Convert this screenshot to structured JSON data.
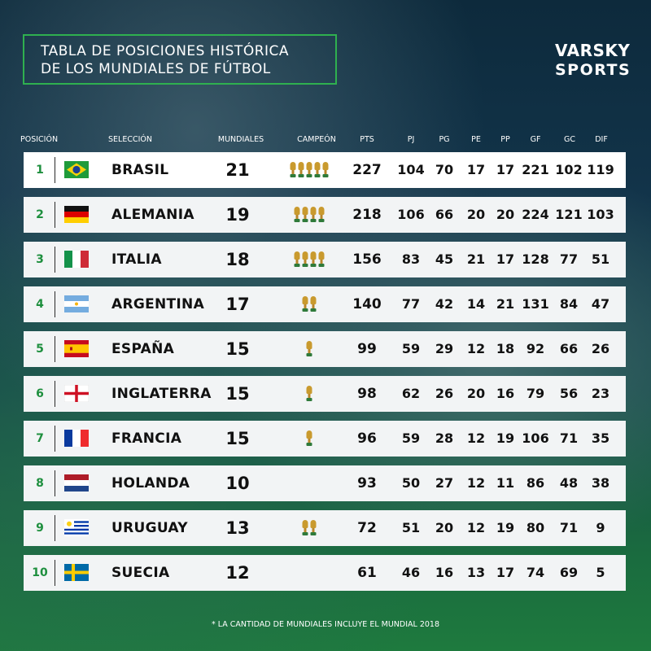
{
  "title": {
    "line1": "TABLA DE POSICIONES HISTÓRICA",
    "line2": "DE LOS MUNDIALES DE FÚTBOL"
  },
  "logo": {
    "line1": "VARSKY",
    "line2": "SPORTS"
  },
  "columns": {
    "posicion": "POSICIÓN",
    "seleccion": "SELECCIÓN",
    "mundiales": "MUNDIALES",
    "campeon": "CAMPEÓN",
    "pts": "PTS",
    "pj": "PJ",
    "pg": "PG",
    "pe": "PE",
    "pp": "PP",
    "gf": "GF",
    "gc": "GC",
    "dif": "DIF"
  },
  "rows": [
    {
      "pos": "1",
      "flag": "brazil-flag",
      "team": "BRASIL",
      "mundiales": "21",
      "titles": 5,
      "pts": "227",
      "pj": "104",
      "pg": "70",
      "pe": "17",
      "pp": "17",
      "gf": "221",
      "gc": "102",
      "dif": "119"
    },
    {
      "pos": "2",
      "flag": "germany-flag",
      "team": "ALEMANIA",
      "mundiales": "19",
      "titles": 4,
      "pts": "218",
      "pj": "106",
      "pg": "66",
      "pe": "20",
      "pp": "20",
      "gf": "224",
      "gc": "121",
      "dif": "103"
    },
    {
      "pos": "3",
      "flag": "italy-flag",
      "team": "ITALIA",
      "mundiales": "18",
      "titles": 4,
      "pts": "156",
      "pj": "83",
      "pg": "45",
      "pe": "21",
      "pp": "17",
      "gf": "128",
      "gc": "77",
      "dif": "51"
    },
    {
      "pos": "4",
      "flag": "argentina-flag",
      "team": "ARGENTINA",
      "mundiales": "17",
      "titles": 2,
      "pts": "140",
      "pj": "77",
      "pg": "42",
      "pe": "14",
      "pp": "21",
      "gf": "131",
      "gc": "84",
      "dif": "47"
    },
    {
      "pos": "5",
      "flag": "spain-flag",
      "team": "ESPAÑA",
      "mundiales": "15",
      "titles": 1,
      "pts": "99",
      "pj": "59",
      "pg": "29",
      "pe": "12",
      "pp": "18",
      "gf": "92",
      "gc": "66",
      "dif": "26"
    },
    {
      "pos": "6",
      "flag": "england-flag",
      "team": "INGLATERRA",
      "mundiales": "15",
      "titles": 1,
      "pts": "98",
      "pj": "62",
      "pg": "26",
      "pe": "20",
      "pp": "16",
      "gf": "79",
      "gc": "56",
      "dif": "23"
    },
    {
      "pos": "7",
      "flag": "france-flag",
      "team": "FRANCIA",
      "mundiales": "15",
      "titles": 1,
      "pts": "96",
      "pj": "59",
      "pg": "28",
      "pe": "12",
      "pp": "19",
      "gf": "106",
      "gc": "71",
      "dif": "35"
    },
    {
      "pos": "8",
      "flag": "netherlands-flag",
      "team": "HOLANDA",
      "mundiales": "10",
      "titles": 0,
      "pts": "93",
      "pj": "50",
      "pg": "27",
      "pe": "12",
      "pp": "11",
      "gf": "86",
      "gc": "48",
      "dif": "38"
    },
    {
      "pos": "9",
      "flag": "uruguay-flag",
      "team": "URUGUAY",
      "mundiales": "13",
      "titles": 2,
      "pts": "72",
      "pj": "51",
      "pg": "20",
      "pe": "12",
      "pp": "19",
      "gf": "80",
      "gc": "71",
      "dif": "9"
    },
    {
      "pos": "10",
      "flag": "sweden-flag",
      "team": "SUECIA",
      "mundiales": "12",
      "titles": 0,
      "pts": "61",
      "pj": "46",
      "pg": "16",
      "pe": "13",
      "pp": "17",
      "gf": "74",
      "gc": "69",
      "dif": "5"
    }
  ],
  "footnote": "* LA CANTIDAD DE MUNDIALES INCLUYE EL MUNDIAL 2018",
  "colors": {
    "accent_green": "#2fb04f",
    "position_green": "#1e8f3e",
    "points_blue": "#1d4f82",
    "row_background": "#f2f4f5",
    "trophy_gold": "#c99a2e"
  }
}
